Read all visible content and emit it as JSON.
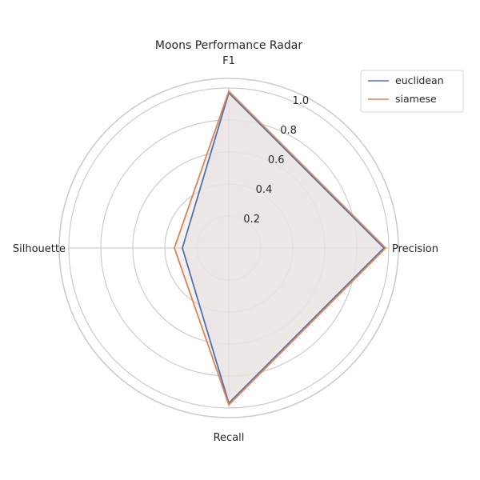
{
  "chart_data": {
    "type": "radar",
    "title": "Moons Performance Radar",
    "axes": [
      "F1",
      "Precision",
      "Recall",
      "Silhouette"
    ],
    "rlim": [
      0,
      1.0
    ],
    "rticks": [
      "0.2",
      "0.4",
      "0.6",
      "0.8",
      "1.0"
    ],
    "rtick_values": [
      0.2,
      0.4,
      0.6,
      0.8,
      1.0
    ],
    "grid": true,
    "legend_position": "top-right",
    "series": [
      {
        "name": "euclidean",
        "color": "#4c72b0",
        "values": [
          0.97,
          0.97,
          0.97,
          0.29
        ]
      },
      {
        "name": "siamese",
        "color": "#dd8452",
        "values": [
          0.98,
          0.98,
          0.98,
          0.34
        ]
      }
    ],
    "fill_color": "#eae3e3"
  }
}
